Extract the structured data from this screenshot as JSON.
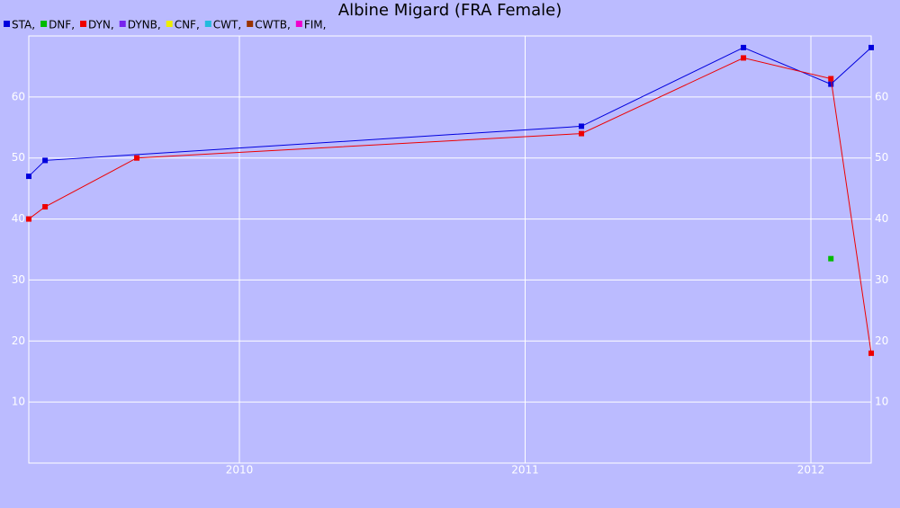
{
  "chart_data": {
    "type": "line",
    "title": "Albine Migard (FRA Female)",
    "legend_separator": ",",
    "xlim": [
      2009.263,
      2012.211
    ],
    "xticks": [
      2010,
      2011,
      2012
    ],
    "ylim": [
      0,
      70
    ],
    "yticks": [
      10,
      20,
      30,
      40,
      50,
      60
    ],
    "grid": true,
    "series": [
      {
        "name": "STA",
        "color": "#0000dd",
        "x": [
          2009.263,
          2009.32,
          2011.197,
          2011.764,
          2012.07,
          2012.211
        ],
        "values": [
          47,
          49.6,
          55.2,
          68.1,
          62.1,
          68.1
        ]
      },
      {
        "name": "DNF",
        "color": "#00bb00",
        "x": [
          2012.07
        ],
        "values": [
          33.5
        ]
      },
      {
        "name": "DYN",
        "color": "#ee0000",
        "x": [
          2009.263,
          2009.32,
          2009.641,
          2011.197,
          2011.764,
          2012.07,
          2012.211
        ],
        "values": [
          40,
          42,
          50,
          54,
          66.4,
          63,
          18
        ]
      },
      {
        "name": "DYNB",
        "color": "#7722ee",
        "x": [],
        "values": []
      },
      {
        "name": "CNF",
        "color": "#eeee00",
        "x": [],
        "values": []
      },
      {
        "name": "CWT",
        "color": "#22bbdd",
        "x": [],
        "values": []
      },
      {
        "name": "CWTB",
        "color": "#993300",
        "x": [],
        "values": []
      },
      {
        "name": "FIM",
        "color": "#ee00cc",
        "x": [],
        "values": []
      }
    ]
  }
}
